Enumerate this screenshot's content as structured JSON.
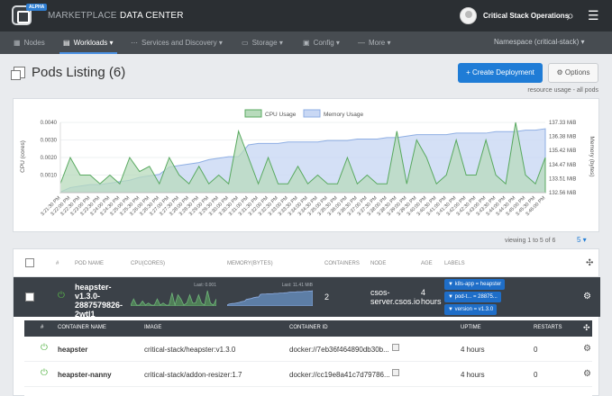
{
  "topbar": {
    "alpha": "ALPHA",
    "nav": [
      "MARKETPLACE",
      "DATA CENTER"
    ],
    "user": "Critical Stack Operations"
  },
  "subnav": {
    "items": [
      "Nodes",
      "Workloads",
      "Services and Discovery",
      "Storage",
      "Config",
      "More"
    ],
    "namespace": "Namespace (critical-stack)"
  },
  "page": {
    "title": "Pods Listing (6)",
    "create_label": "Create Deployment",
    "options_label": "Options",
    "resource_note": "resource usage - all pods"
  },
  "chart_data": {
    "type": "line",
    "legend": [
      "CPU Usage",
      "Memory Usage"
    ],
    "ylabel": "CPU (cores)",
    "y2label": "Memory (bytes)",
    "y_ticks": [
      "0.0040",
      "0.0030",
      "0.0020",
      "0.0010"
    ],
    "y2_ticks": [
      "137.33 MiB",
      "136.38 MiB",
      "135.42 MiB",
      "134.47 MiB",
      "133.51 MiB",
      "132.56 MiB"
    ],
    "x": [
      "3:21:30 PM",
      "3:22:00 PM",
      "3:22:30 PM",
      "3:23:00 PM",
      "3:23:30 PM",
      "3:24:00 PM",
      "3:24:30 PM",
      "3:25:00 PM",
      "3:25:30 PM",
      "3:26:00 PM",
      "3:26:30 PM",
      "3:27:00 PM",
      "3:27:30 PM",
      "3:28:00 PM",
      "3:28:30 PM",
      "3:29:00 PM",
      "3:29:30 PM",
      "3:30:00 PM",
      "3:30:30 PM",
      "3:31:00 PM",
      "3:31:30 PM",
      "3:32:00 PM",
      "3:32:30 PM",
      "3:33:00 PM",
      "3:33:30 PM",
      "3:34:00 PM",
      "3:34:30 PM",
      "3:35:00 PM",
      "3:35:30 PM",
      "3:36:00 PM",
      "3:36:30 PM",
      "3:37:00 PM",
      "3:37:30 PM",
      "3:38:00 PM",
      "3:38:30 PM",
      "3:39:00 PM",
      "3:39:30 PM",
      "3:40:00 PM",
      "3:40:30 PM",
      "3:41:00 PM",
      "3:41:30 PM",
      "3:42:00 PM",
      "3:42:30 PM",
      "3:43:00 PM",
      "3:43:30 PM",
      "3:44:00 PM",
      "3:44:30 PM",
      "3:45:00 PM",
      "3:45:30 PM",
      "3:46:00 PM"
    ],
    "cpu": [
      0.0005,
      0.002,
      0.001,
      0.001,
      0.0005,
      0.001,
      0.0005,
      0.002,
      0.0012,
      0.0015,
      0.0005,
      0.002,
      0.001,
      0.0005,
      0.0015,
      0.0005,
      0.001,
      0.0005,
      0.0035,
      0.002,
      0.0005,
      0.002,
      0.0005,
      0.0005,
      0.0015,
      0.0005,
      0.001,
      0.0005,
      0.0005,
      0.002,
      0.0005,
      0.001,
      0.0005,
      0.0005,
      0.0035,
      0.0005,
      0.003,
      0.002,
      0.0005,
      0.001,
      0.003,
      0.001,
      0.001,
      0.003,
      0.001,
      0.0005,
      0.004,
      0.001,
      0.0005,
      0.002
    ],
    "memory_mib": [
      132.6,
      132.9,
      133.0,
      133.1,
      133.1,
      133.2,
      133.3,
      133.4,
      133.6,
      133.7,
      133.8,
      134.3,
      134.4,
      134.5,
      134.6,
      134.8,
      134.9,
      135.0,
      135.0,
      135.8,
      135.9,
      135.9,
      135.9,
      136.0,
      136.0,
      136.0,
      136.0,
      136.1,
      136.1,
      136.1,
      136.2,
      136.2,
      136.2,
      136.3,
      136.3,
      136.4,
      136.5,
      136.5,
      136.5,
      136.5,
      136.6,
      136.6,
      136.6,
      136.6,
      136.7,
      136.7,
      136.7,
      136.8,
      136.8,
      136.9
    ],
    "ylim": [
      0,
      0.004
    ],
    "y2lim_mib": [
      132.56,
      137.33
    ]
  },
  "table": {
    "viewing": "viewing 1 to 5 of 6",
    "pager": "5 ▾",
    "headers": [
      "#",
      "POD NAME",
      "CPU(CORES)",
      "MEMORY(BYTES)",
      "CONTAINERS",
      "NODE",
      "AGE",
      "LABELS"
    ],
    "row": {
      "name": "heapster-v1.3.0-2887579826-2wtl1",
      "cpu_last": "Last: 0.001",
      "mem_last": "Last: 11.41 MiB",
      "containers": "2",
      "node": "csos-server.csos.io",
      "age": "4 hours",
      "labels": [
        "k8s-app = heapster",
        "pod-t... = 28875...",
        "version = v1.3.0"
      ]
    }
  },
  "containers": {
    "headers": [
      "#",
      "CONTAINER NAME",
      "IMAGE",
      "CONTAINER ID",
      "UPTIME",
      "RESTARTS"
    ],
    "rows": [
      {
        "name": "heapster",
        "image": "critical-stack/heapster:v1.3.0",
        "id": "docker://7eb36f464890db30b...",
        "uptime": "4 hours",
        "restarts": "0"
      },
      {
        "name": "heapster-nanny",
        "image": "critical-stack/addon-resizer:1.7",
        "id": "docker://cc19e8a41c7d79786...",
        "uptime": "4 hours",
        "restarts": "0"
      }
    ]
  }
}
